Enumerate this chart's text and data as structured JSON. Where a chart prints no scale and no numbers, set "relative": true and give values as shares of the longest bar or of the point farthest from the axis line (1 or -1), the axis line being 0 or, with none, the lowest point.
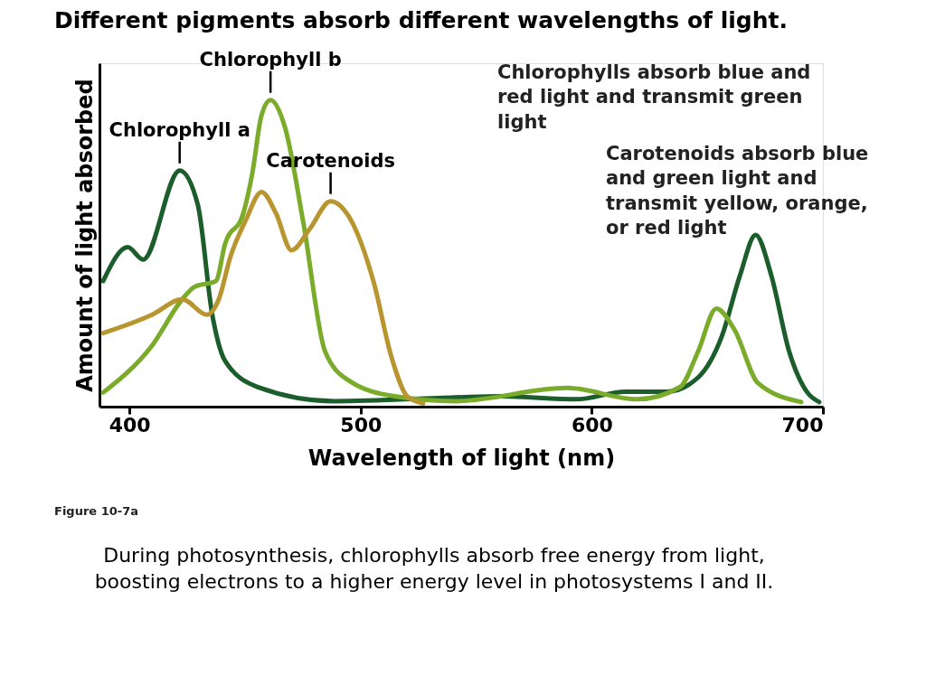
{
  "chart_data": {
    "type": "line",
    "title": "Different pigments absorb different wavelengths of light.",
    "xlabel": "Wavelength of light (nm)",
    "ylabel": "Amount of light absorbed",
    "relative": true,
    "xlim": [
      387,
      700
    ],
    "xticks": [
      400,
      500,
      600,
      700
    ],
    "grid": false,
    "legend": false,
    "marker": "none",
    "line_style": "solid",
    "series": [
      {
        "color": "#1b5e2b",
        "x": [
          388.6,
          399.2,
          405.9,
          421.7,
          429.5,
          435.8,
          441.3,
          455.5,
          488.6,
          541,
          560.6,
          593.3,
          614.6,
          632.7,
          646,
          656.3,
          664.2,
          670.9,
          677.6,
          685.4,
          693.3,
          698.4
        ],
        "values": [
          0.41,
          0.52,
          0.48,
          0.77,
          0.66,
          0.3,
          0.15,
          0.064,
          0.018,
          0.03,
          0.034,
          0.024,
          0.049,
          0.049,
          0.095,
          0.23,
          0.43,
          0.56,
          0.43,
          0.18,
          0.046,
          0.015
        ]
      },
      {
        "color": "#7aab2a",
        "x": [
          388.6,
          409.8,
          422.8,
          428,
          437.4,
          441.3,
          449.2,
          453.1,
          457.1,
          461,
          467.3,
          475.2,
          484.6,
          494.9,
          514.6,
          541,
          589.4,
          619.7,
          638.2,
          646,
          653.9,
          661.8,
          672,
          690.6
        ],
        "values": [
          0.046,
          0.2,
          0.35,
          0.39,
          0.41,
          0.53,
          0.63,
          0.76,
          0.95,
          1.0,
          0.91,
          0.6,
          0.18,
          0.085,
          0.034,
          0.018,
          0.061,
          0.024,
          0.064,
          0.18,
          0.32,
          0.25,
          0.076,
          0.015
        ]
      },
      {
        "color": "#b8952e",
        "x": [
          388.6,
          409.8,
          422.8,
          433.5,
          438.6,
          443.7,
          450.4,
          457.1,
          463.4,
          470.1,
          478,
          487,
          494.9,
          505.5,
          513.4,
          520.1,
          527
        ],
        "values": [
          0.24,
          0.3,
          0.35,
          0.3,
          0.35,
          0.49,
          0.61,
          0.7,
          0.63,
          0.51,
          0.58,
          0.67,
          0.62,
          0.41,
          0.16,
          0.034,
          0.01
        ]
      }
    ],
    "annotations": [
      {
        "text": "Chlorophyll a",
        "x": 421.7,
        "y": 0.77
      },
      {
        "text": "Chlorophyll b",
        "x": 461,
        "y": 1.0
      },
      {
        "text": "Carotenoids",
        "x": 487,
        "y": 0.67
      },
      "Chlorophylls absorb blue and red light and transmit green light",
      "Carotenoids absorb blue and green light and transmit yellow, orange, or red light",
      "Figure 10-7a",
      "During photosynthesis, chlorophylls absorb free energy from light, boosting electrons to a higher energy level in photosystems I and II."
    ]
  }
}
